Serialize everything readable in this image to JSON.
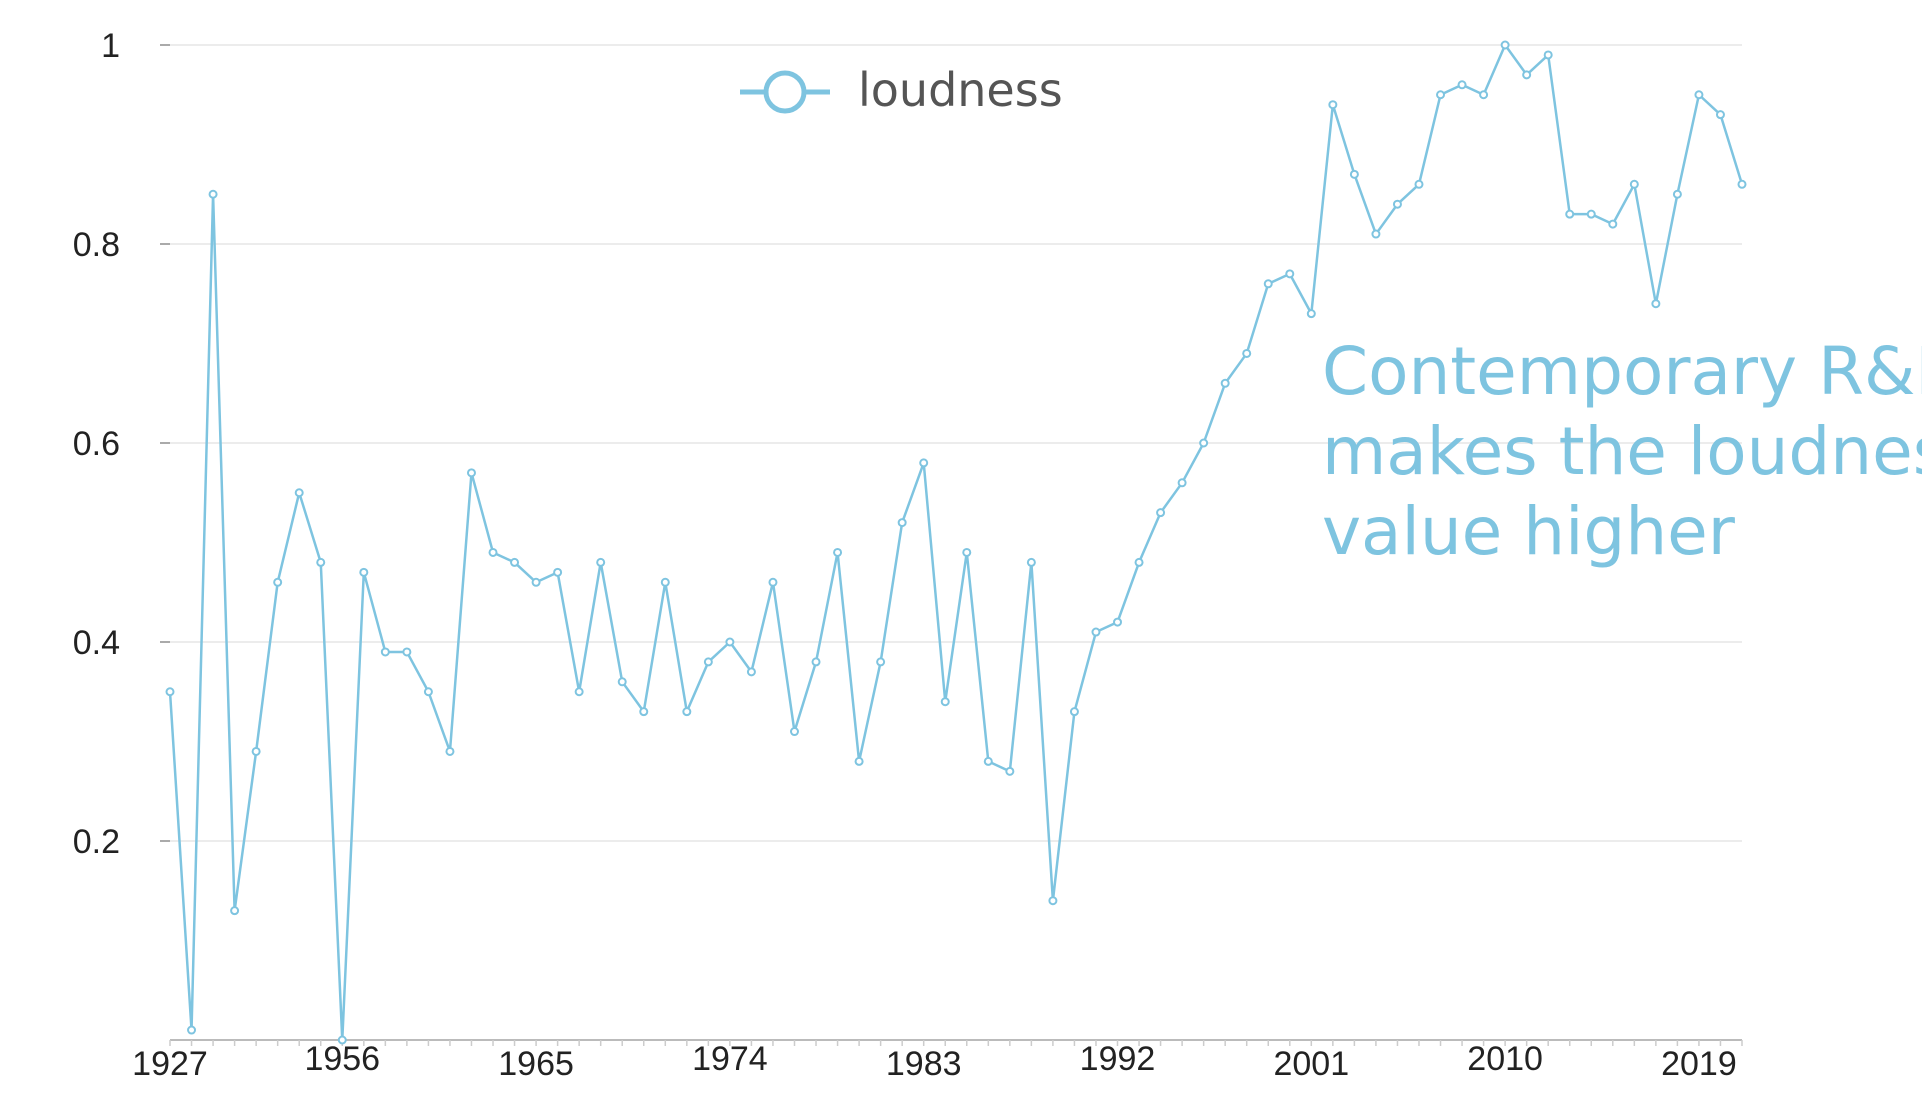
{
  "chart_data": {
    "type": "line",
    "title": "",
    "xlabel": "",
    "ylabel": "",
    "color": "#7ec4e0",
    "grid": "horizontal",
    "legend_position": "top-center",
    "ylim": [
      0,
      1
    ],
    "yticks": [
      "1",
      "0.8",
      "0.6",
      "0.4",
      "0.2"
    ],
    "ytick_values": [
      1,
      0.8,
      0.6,
      0.4,
      0.2
    ],
    "xticks": [
      "1927",
      "1956",
      "1965",
      "1974",
      "1983",
      "1992",
      "2001",
      "2010",
      "2019"
    ],
    "xtick_indices": [
      0,
      8,
      17,
      26,
      35,
      44,
      53,
      62,
      71
    ],
    "series": [
      {
        "name": "loudness",
        "values": [
          0.35,
          0.01,
          0.85,
          0.13,
          0.29,
          0.46,
          0.55,
          0.48,
          0.0,
          0.47,
          0.39,
          0.39,
          0.35,
          0.29,
          0.57,
          0.49,
          0.48,
          0.46,
          0.47,
          0.35,
          0.48,
          0.36,
          0.33,
          0.46,
          0.33,
          0.38,
          0.4,
          0.37,
          0.46,
          0.31,
          0.38,
          0.49,
          0.28,
          0.38,
          0.52,
          0.58,
          0.34,
          0.49,
          0.28,
          0.27,
          0.48,
          0.14,
          0.33,
          0.41,
          0.42,
          0.48,
          0.53,
          0.56,
          0.6,
          0.66,
          0.69,
          0.76,
          0.77,
          0.73,
          0.94,
          0.87,
          0.81,
          0.84,
          0.86,
          0.95,
          0.96,
          0.95,
          1.0,
          0.97,
          0.99,
          0.83,
          0.83,
          0.82,
          0.86,
          0.74,
          0.85,
          0.95,
          0.93,
          0.86
        ]
      }
    ],
    "annotation": {
      "lines": [
        "Contemporary R&B",
        "makes the loudness",
        "value higher"
      ],
      "color": "#7ec4e0"
    }
  }
}
